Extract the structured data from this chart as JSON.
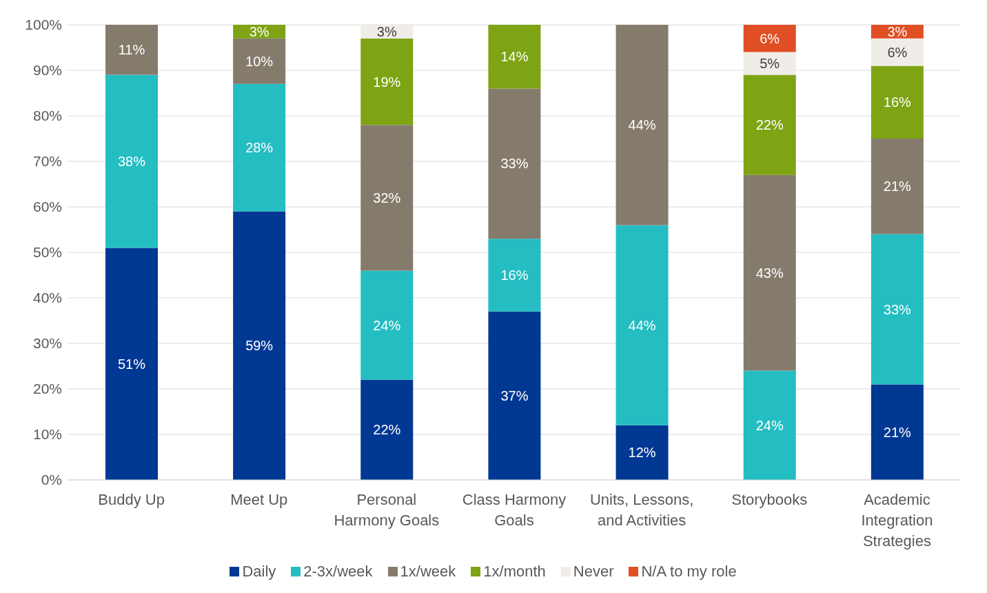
{
  "chart_data": {
    "type": "bar",
    "stacked": true,
    "categories": [
      "Buddy Up",
      "Meet Up",
      "Personal Harmony Goals",
      "Class Harmony Goals",
      "Units, Lessons, and Activities",
      "Storybooks",
      "Academic Integration Strategies"
    ],
    "series": [
      {
        "name": "Daily",
        "color": "#003893",
        "values": [
          51,
          59,
          22,
          37,
          12,
          null,
          21
        ],
        "value_labels": [
          "51%",
          "59%",
          "22%",
          "37%",
          "12%",
          null,
          "21%"
        ]
      },
      {
        "name": "2-3x/week",
        "color": "#23bdc2",
        "values": [
          38,
          28,
          24,
          16,
          44,
          24,
          33
        ],
        "value_labels": [
          "38%",
          "28%",
          "24%",
          "16%",
          "44%",
          "24%",
          "33%"
        ]
      },
      {
        "name": "1x/week",
        "color": "#857b6c",
        "values": [
          11,
          10,
          32,
          33,
          44,
          43,
          21
        ],
        "value_labels": [
          "11%",
          "10%",
          "32%",
          "33%",
          "44%",
          "43%",
          "21%"
        ]
      },
      {
        "name": "1x/month",
        "color": "#7ea313",
        "values": [
          null,
          3,
          19,
          14,
          null,
          22,
          16
        ],
        "value_labels": [
          null,
          "3%",
          "19%",
          "14%",
          null,
          "22%",
          "16%"
        ]
      },
      {
        "name": "Never",
        "color": "#f0ece8",
        "values": [
          null,
          null,
          3,
          null,
          null,
          5,
          6
        ],
        "value_labels": [
          null,
          null,
          "3%",
          null,
          null,
          "5%",
          "6%"
        ]
      },
      {
        "name": "N/A to my role",
        "color": "#e04e24",
        "values": [
          null,
          null,
          null,
          null,
          null,
          6,
          3
        ],
        "value_labels": [
          null,
          null,
          null,
          null,
          null,
          "6%",
          "3%"
        ]
      }
    ],
    "ylim": [
      0,
      100
    ],
    "yticks": [
      {
        "value": 0,
        "label": "0%"
      },
      {
        "value": 10,
        "label": "10%"
      },
      {
        "value": 20,
        "label": "20%"
      },
      {
        "value": 30,
        "label": "30%"
      },
      {
        "value": 40,
        "label": "40%"
      },
      {
        "value": 50,
        "label": "50%"
      },
      {
        "value": 60,
        "label": "60%"
      },
      {
        "value": 70,
        "label": "70%"
      },
      {
        "value": 80,
        "label": "80%"
      },
      {
        "value": 90,
        "label": "90%"
      },
      {
        "value": 100,
        "label": "100%"
      }
    ],
    "grid": "y",
    "legend": "bottom"
  }
}
